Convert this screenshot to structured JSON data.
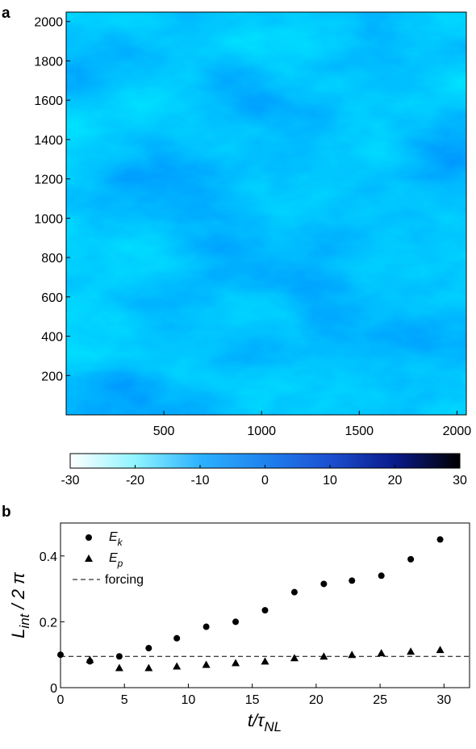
{
  "chart_data": [
    {
      "type": "heatmap",
      "panel_label": "a",
      "xlim": [
        0,
        2048
      ],
      "xticks": [
        500,
        1000,
        1500,
        2000
      ],
      "ylim": [
        0,
        2048
      ],
      "yticks": [
        200,
        400,
        600,
        800,
        1000,
        1200,
        1400,
        1600,
        1800,
        2000
      ],
      "colorbar": {
        "clim": [
          -30,
          30
        ],
        "ticks": [
          -30,
          -20,
          -10,
          0,
          10,
          20,
          30
        ],
        "colormap": [
          "#ffffff",
          "#8ff4ff",
          "#2cb2ff",
          "#1f82ee",
          "#1c4fd0",
          "#0a1a8a",
          "#000000"
        ]
      }
    },
    {
      "type": "scatter",
      "panel_label": "b",
      "x_label": {
        "main": "t/τ",
        "sub": "NL"
      },
      "y_label": {
        "main": "L",
        "sub": "int",
        "rest": " / 2 π"
      },
      "xlim": [
        0,
        32
      ],
      "xticks": [
        0,
        5,
        10,
        15,
        20,
        25,
        30
      ],
      "ylim": [
        0,
        0.5
      ],
      "yticks": [
        0,
        0.2,
        0.4
      ],
      "series": [
        {
          "name": "E",
          "subscript": "k",
          "marker": "circle",
          "color": "#000000",
          "x": [
            0,
            2.3,
            4.6,
            6.9,
            9.1,
            11.4,
            13.7,
            16.0,
            18.3,
            20.6,
            22.8,
            25.1,
            27.4,
            29.7
          ],
          "values": [
            0.1,
            0.08,
            0.095,
            0.12,
            0.15,
            0.185,
            0.2,
            0.235,
            0.29,
            0.315,
            0.325,
            0.34,
            0.39,
            0.45
          ]
        },
        {
          "name": "E",
          "subscript": "p",
          "marker": "triangle",
          "color": "#000000",
          "x": [
            2.3,
            4.6,
            6.9,
            9.1,
            11.4,
            13.7,
            16.0,
            18.3,
            20.6,
            22.8,
            25.1,
            27.4,
            29.7
          ],
          "values": [
            0.085,
            0.06,
            0.06,
            0.065,
            0.07,
            0.075,
            0.08,
            0.09,
            0.095,
            0.1,
            0.105,
            0.11,
            0.115
          ]
        }
      ],
      "reference_line": {
        "name": "forcing",
        "value": 0.095,
        "style": "dashed"
      }
    }
  ]
}
